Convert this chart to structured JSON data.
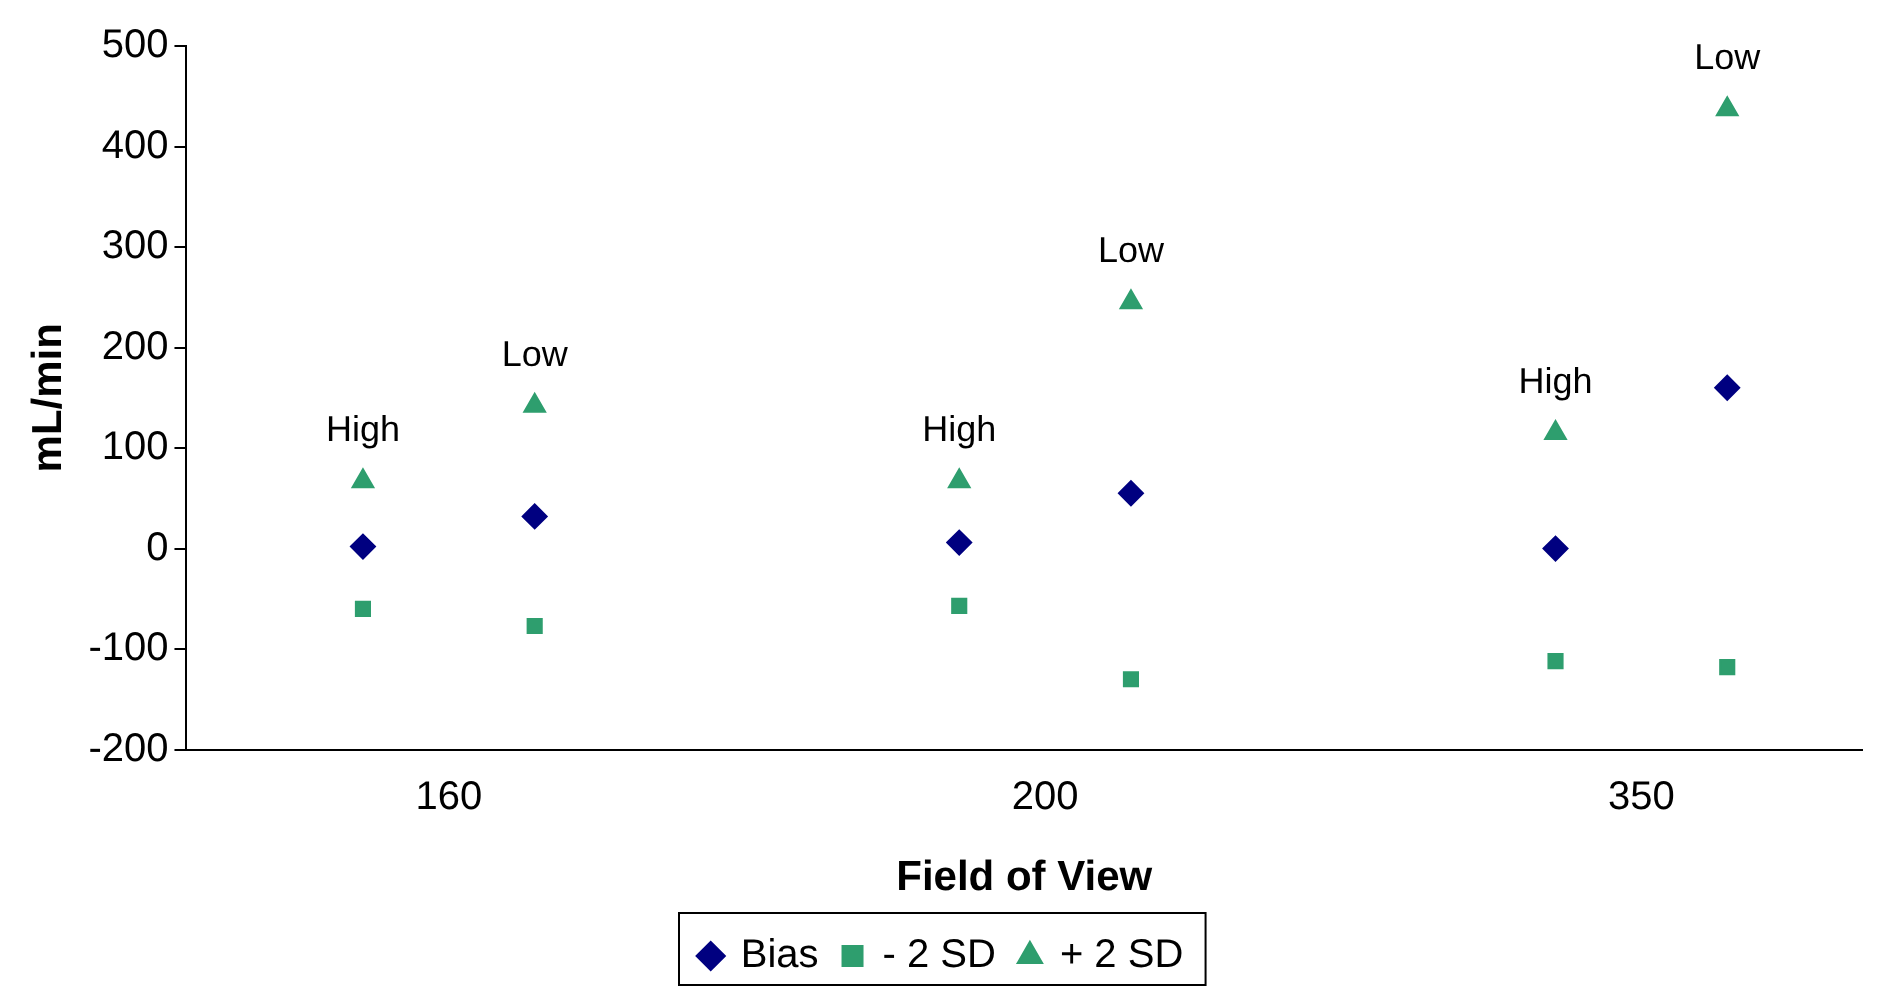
{
  "chart_data": {
    "type": "scatter",
    "xlabel": "Field of View",
    "ylabel": "mL/min",
    "categories": [
      "160",
      "200",
      "350"
    ],
    "ylim": [
      -200,
      500
    ],
    "yticks": [
      -200,
      -100,
      0,
      100,
      200,
      300,
      400,
      500
    ],
    "grid": false,
    "legend": "bottom",
    "series": [
      {
        "name": "Bias",
        "color": "#000080",
        "marker": "diamond",
        "x": [
          "160",
          "160",
          "200",
          "200",
          "350",
          "350"
        ],
        "values": [
          2,
          32,
          6,
          55,
          0,
          160
        ]
      },
      {
        "name": "- 2 SD",
        "color": "#2e9e6e",
        "marker": "square",
        "x": [
          "160",
          "160",
          "200",
          "200",
          "350",
          "350"
        ],
        "values": [
          -60,
          -77,
          -57,
          -130,
          -112,
          -118
        ]
      },
      {
        "name": "+ 2 SD",
        "color": "#2e9e6e",
        "marker": "triangle",
        "x": [
          "160",
          "160",
          "200",
          "200",
          "350",
          "350"
        ],
        "values": [
          67,
          142,
          67,
          245,
          115,
          437
        ]
      }
    ],
    "annotations": [
      "High",
      "Low",
      "High",
      "Low",
      "High",
      "Low"
    ]
  }
}
